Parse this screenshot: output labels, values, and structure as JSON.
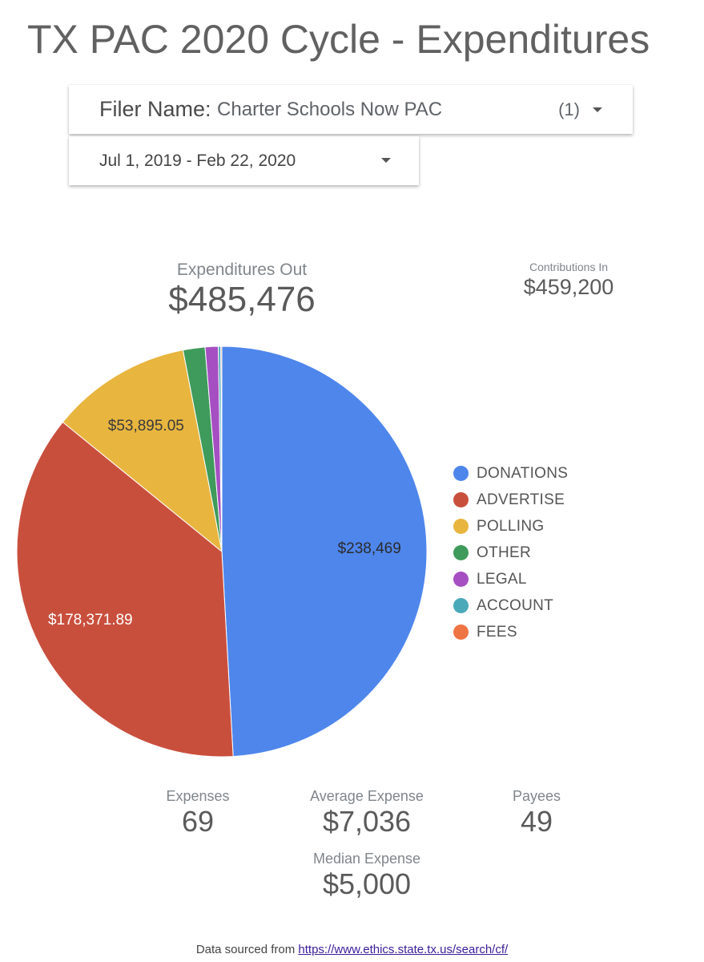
{
  "title": "TX PAC 2020 Cycle - Expenditures",
  "filters": {
    "filer_label": "Filer Name",
    "filer_value": "Charter Schools Now PAC",
    "filer_count": "(1)",
    "date_range": "Jul 1, 2019 - Feb 22, 2020"
  },
  "kpis": {
    "expenditures_label": "Expenditures Out",
    "expenditures_value": "$485,476",
    "contributions_label": "Contributions In",
    "contributions_value": "$459,200"
  },
  "stats": {
    "expenses_label": "Expenses",
    "expenses_value": "69",
    "average_label": "Average Expense",
    "average_value": "$7,036",
    "payees_label": "Payees",
    "payees_value": "49",
    "median_label": "Median Expense",
    "median_value": "$5,000"
  },
  "footer": {
    "text": "Data sourced from",
    "link": "https://www.ethics.state.tx.us/search/cf/"
  },
  "chart_data": {
    "type": "pie",
    "categories": [
      "DONATIONS",
      "ADVERTISE",
      "POLLING",
      "OTHER",
      "LEGAL",
      "ACCOUNT",
      "FEES"
    ],
    "values": [
      238469,
      178371.89,
      53895.05,
      8400,
      5000,
      940,
      400
    ],
    "value_labels": [
      "$238,469",
      "$178,371.89",
      "$53,895.05",
      "",
      "",
      "",
      ""
    ],
    "colors": [
      "#4e86ec",
      "#c94f3d",
      "#e8b53f",
      "#3f9b5b",
      "#a54fc2",
      "#4aa9b9",
      "#ef7443"
    ],
    "label_colors": [
      "#2b2b2b",
      "#ffffff",
      "#3a3a3a",
      "",
      "",
      "",
      ""
    ],
    "legend_position": "right"
  }
}
